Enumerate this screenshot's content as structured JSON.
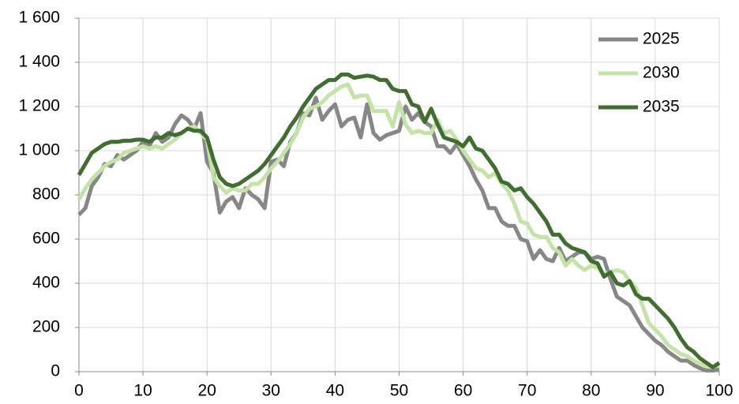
{
  "chart_data": {
    "type": "line",
    "x": [
      0,
      1,
      2,
      3,
      4,
      5,
      6,
      7,
      8,
      9,
      10,
      11,
      12,
      13,
      14,
      15,
      16,
      17,
      18,
      19,
      20,
      21,
      22,
      23,
      24,
      25,
      26,
      27,
      28,
      29,
      30,
      31,
      32,
      33,
      34,
      35,
      36,
      37,
      38,
      39,
      40,
      41,
      42,
      43,
      44,
      45,
      46,
      47,
      48,
      49,
      50,
      51,
      52,
      53,
      54,
      55,
      56,
      57,
      58,
      59,
      60,
      61,
      62,
      63,
      64,
      65,
      66,
      67,
      68,
      69,
      70,
      71,
      72,
      73,
      74,
      75,
      76,
      77,
      78,
      79,
      80,
      81,
      82,
      83,
      84,
      85,
      86,
      87,
      88,
      89,
      90,
      91,
      92,
      93,
      94,
      95,
      96,
      97,
      98,
      99,
      100
    ],
    "series": [
      {
        "name": "2025",
        "color": "#878787",
        "values": [
          710,
          740,
          840,
          880,
          940,
          930,
          980,
          960,
          980,
          1000,
          1040,
          1020,
          1080,
          1040,
          1060,
          1120,
          1160,
          1140,
          1100,
          1170,
          950,
          900,
          720,
          770,
          790,
          740,
          830,
          800,
          780,
          740,
          950,
          960,
          930,
          1040,
          1080,
          1170,
          1160,
          1240,
          1140,
          1180,
          1210,
          1110,
          1140,
          1150,
          1060,
          1210,
          1080,
          1050,
          1070,
          1080,
          1090,
          1200,
          1140,
          1170,
          1130,
          1110,
          1020,
          1020,
          990,
          1030,
          980,
          930,
          870,
          820,
          740,
          740,
          680,
          660,
          660,
          600,
          590,
          510,
          550,
          510,
          500,
          560,
          500,
          520,
          540,
          540,
          510,
          520,
          510,
          420,
          340,
          320,
          300,
          250,
          200,
          170,
          140,
          120,
          90,
          70,
          50,
          50,
          30,
          15,
          5,
          5,
          10
        ]
      },
      {
        "name": "2030",
        "color": "#c3e3a7",
        "values": [
          780,
          830,
          870,
          900,
          930,
          950,
          960,
          990,
          1000,
          1010,
          1020,
          1010,
          1020,
          1010,
          1030,
          1050,
          1080,
          1100,
          1110,
          1080,
          1050,
          880,
          840,
          810,
          830,
          820,
          820,
          850,
          850,
          880,
          920,
          950,
          990,
          1030,
          1080,
          1150,
          1190,
          1200,
          1220,
          1250,
          1270,
          1290,
          1300,
          1240,
          1250,
          1250,
          1180,
          1180,
          1180,
          1110,
          1220,
          1120,
          1080,
          1090,
          1080,
          1080,
          1140,
          1080,
          1090,
          1050,
          1000,
          960,
          920,
          910,
          880,
          900,
          850,
          820,
          760,
          680,
          670,
          620,
          610,
          610,
          560,
          540,
          480,
          510,
          480,
          460,
          480,
          470,
          440,
          450,
          460,
          450,
          410,
          380,
          300,
          220,
          190,
          160,
          120,
          100,
          80,
          70,
          50,
          35,
          25,
          20,
          30
        ]
      },
      {
        "name": "2035",
        "color": "#3f6e30",
        "values": [
          890,
          940,
          990,
          1010,
          1030,
          1040,
          1040,
          1045,
          1045,
          1050,
          1050,
          1040,
          1060,
          1060,
          1080,
          1070,
          1080,
          1100,
          1090,
          1090,
          1060,
          960,
          880,
          850,
          840,
          850,
          870,
          890,
          910,
          940,
          980,
          1020,
          1060,
          1110,
          1150,
          1200,
          1240,
          1280,
          1300,
          1320,
          1320,
          1345,
          1345,
          1330,
          1335,
          1340,
          1335,
          1320,
          1320,
          1280,
          1270,
          1270,
          1210,
          1200,
          1130,
          1190,
          1120,
          1060,
          1050,
          1040,
          1020,
          1060,
          1010,
          1000,
          960,
          920,
          860,
          850,
          820,
          830,
          790,
          760,
          720,
          680,
          620,
          620,
          580,
          560,
          550,
          540,
          500,
          490,
          430,
          450,
          400,
          390,
          410,
          350,
          330,
          330,
          300,
          270,
          240,
          200,
          150,
          110,
          90,
          60,
          40,
          20,
          40
        ]
      }
    ],
    "xlim": [
      0,
      100
    ],
    "xticks": [
      0,
      10,
      20,
      30,
      40,
      50,
      60,
      70,
      80,
      90,
      100
    ],
    "ylim": [
      0,
      1600
    ],
    "yticks": [
      0,
      200,
      400,
      600,
      800,
      {
        "value": 1000,
        "label": "1 000"
      },
      {
        "value": 1200,
        "label": "1 200"
      },
      {
        "value": 1400,
        "label": "1 400"
      },
      {
        "value": 1600,
        "label": "1 600"
      }
    ],
    "grid": true,
    "legend": "top-right"
  }
}
